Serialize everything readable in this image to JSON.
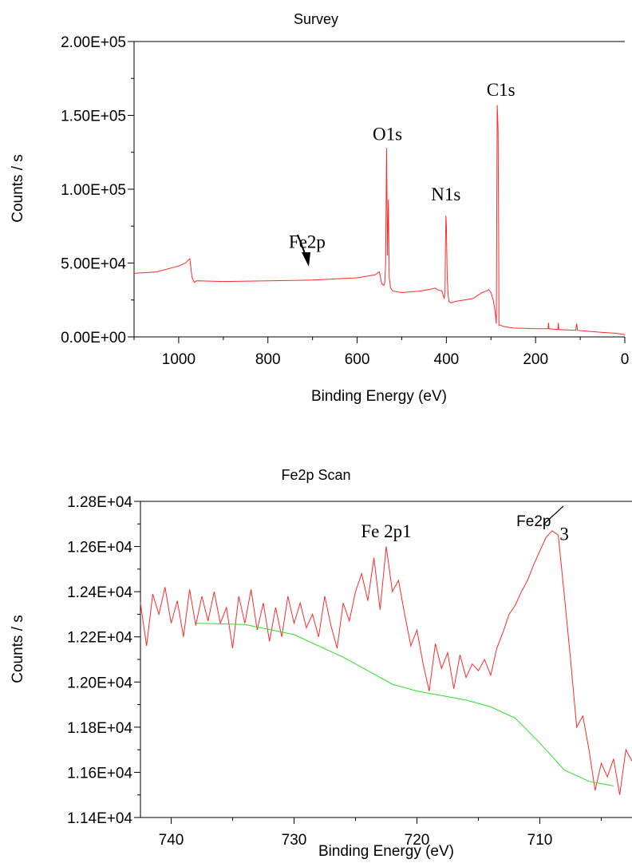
{
  "chart_data": [
    {
      "type": "line",
      "title": "Survey",
      "xlabel": "Binding Energy (eV)",
      "ylabel": "Counts / s",
      "xlim": [
        1100,
        0
      ],
      "ylim": [
        0,
        200000
      ],
      "x_ticks": [
        1000,
        800,
        600,
        400,
        200,
        0
      ],
      "x_tick_labels": [
        "1000",
        "800",
        "600",
        "400",
        "200",
        "0"
      ],
      "y_ticks": [
        0,
        50000,
        100000,
        150000,
        200000
      ],
      "y_tick_labels": [
        "0.00E+00",
        "5.00E+04",
        "1.00E+05",
        "1.50E+05",
        "2.00E+05"
      ],
      "grid": false,
      "series": [
        {
          "color": "#ff2a2a",
          "x": [
            1100,
            1050,
            1000,
            985,
            975,
            970,
            965,
            960,
            900,
            800,
            700,
            600,
            560,
            550,
            545,
            540,
            538,
            536,
            534,
            532,
            530,
            528,
            525,
            520,
            500,
            460,
            440,
            425,
            420,
            410,
            405,
            403,
            402,
            401,
            400,
            399,
            398,
            396,
            394,
            390,
            380,
            340,
            320,
            310,
            305,
            300,
            295,
            292,
            290,
            288,
            287,
            286,
            285,
            284,
            283,
            282,
            280,
            270,
            250,
            200,
            172,
            171,
            170,
            150,
            149,
            148,
            110,
            108,
            106,
            90,
            50,
            20,
            0
          ],
          "y": [
            43000,
            44000,
            48000,
            50000,
            53000,
            40000,
            37000,
            38000,
            37500,
            38000,
            38500,
            40000,
            42000,
            44000,
            36000,
            35000,
            37000,
            50000,
            128000,
            55000,
            93000,
            40000,
            33000,
            31000,
            30000,
            31000,
            32000,
            33000,
            32000,
            31000,
            26000,
            30000,
            60000,
            82000,
            75000,
            58000,
            40000,
            28000,
            24000,
            23000,
            24000,
            26000,
            30000,
            31000,
            32000,
            30000,
            25000,
            20000,
            15000,
            9000,
            80000,
            157000,
            148000,
            140000,
            80000,
            8000,
            8000,
            7000,
            6000,
            5500,
            5500,
            9500,
            5500,
            5000,
            9500,
            5000,
            4500,
            9000,
            4500,
            4000,
            3000,
            2500,
            1500
          ]
        }
      ],
      "annotations": [
        {
          "text": "Fe2p",
          "x": 712,
          "y": 58000
        },
        {
          "text": "O1s",
          "x": 532,
          "y": 130000
        },
        {
          "text": "N1s",
          "x": 401,
          "y": 88000
        },
        {
          "text": "C1s",
          "x": 285,
          "y": 160000
        }
      ]
    },
    {
      "type": "line",
      "title": "Fe2p Scan",
      "xlabel": "Binding Energy (eV)",
      "ylabel": "Counts / s",
      "xlim": [
        742.5,
        702.5
      ],
      "ylim": [
        11400,
        12800
      ],
      "x_ticks": [
        740,
        730,
        720,
        710
      ],
      "x_tick_labels": [
        "740",
        "730",
        "720",
        "710"
      ],
      "y_ticks": [
        11400,
        11600,
        11800,
        12000,
        12200,
        12400,
        12600,
        12800
      ],
      "y_tick_labels": [
        "1.14E+04",
        "1.16E+04",
        "1.18E+04",
        "1.20E+04",
        "1.22E+04",
        "1.24E+04",
        "1.26E+04",
        "1.28E+04"
      ],
      "grid": false,
      "series": [
        {
          "color": "#ff2a2a",
          "x": [
            742.5,
            742,
            741.5,
            741,
            740.5,
            740,
            739.5,
            739,
            738.5,
            738,
            737.5,
            737,
            736.5,
            736,
            735.5,
            735,
            734.5,
            734,
            733.5,
            733,
            732.5,
            732,
            731.5,
            731,
            730.5,
            730,
            729.5,
            729,
            728.5,
            728,
            727.5,
            727,
            726.5,
            726,
            725.5,
            725,
            724.5,
            724,
            723.5,
            723,
            722.5,
            722,
            721.5,
            721,
            720.5,
            720,
            719.5,
            719,
            718.5,
            718,
            717.5,
            717,
            716.5,
            716,
            715.5,
            715,
            714.5,
            714,
            713.5,
            713,
            712.5,
            712,
            711.5,
            711,
            710.5,
            710,
            709.5,
            709,
            708.5,
            708,
            707.5,
            707,
            706.5,
            706,
            705.5,
            705,
            704.5,
            704,
            703.5,
            703,
            702.5
          ],
          "y": [
            12350,
            12160,
            12390,
            12300,
            12420,
            12260,
            12360,
            12200,
            12410,
            12250,
            12380,
            12270,
            12400,
            12260,
            12330,
            12150,
            12380,
            12260,
            12410,
            12230,
            12350,
            12180,
            12330,
            12200,
            12380,
            12260,
            12350,
            12240,
            12300,
            12200,
            12380,
            12250,
            12150,
            12350,
            12270,
            12400,
            12480,
            12360,
            12550,
            12320,
            12600,
            12400,
            12450,
            12300,
            12160,
            12230,
            12080,
            11960,
            12170,
            12060,
            12130,
            11970,
            12120,
            12020,
            12080,
            12050,
            12100,
            12030,
            12150,
            12220,
            12300,
            12340,
            12400,
            12450,
            12520,
            12580,
            12640,
            12670,
            12650,
            12380,
            12100,
            11800,
            11850,
            11700,
            11520,
            11640,
            11580,
            11660,
            11500,
            11700,
            11650
          ]
        },
        {
          "color": "#2adf2a",
          "x": [
            738,
            734,
            730,
            726,
            724,
            722,
            720,
            718,
            716,
            714,
            712,
            710,
            708,
            706,
            704
          ],
          "y": [
            12260,
            12255,
            12210,
            12110,
            12050,
            11990,
            11960,
            11940,
            11920,
            11890,
            11840,
            11730,
            11610,
            11560,
            11540
          ]
        }
      ],
      "annotations": [
        {
          "text": "Fe 2p1",
          "x": 722.5,
          "y": 12620
        },
        {
          "text": "Fe2p",
          "x": 710.5,
          "y": 12690
        },
        {
          "text": "3",
          "x": 708.4,
          "y": 12650
        }
      ]
    }
  ]
}
